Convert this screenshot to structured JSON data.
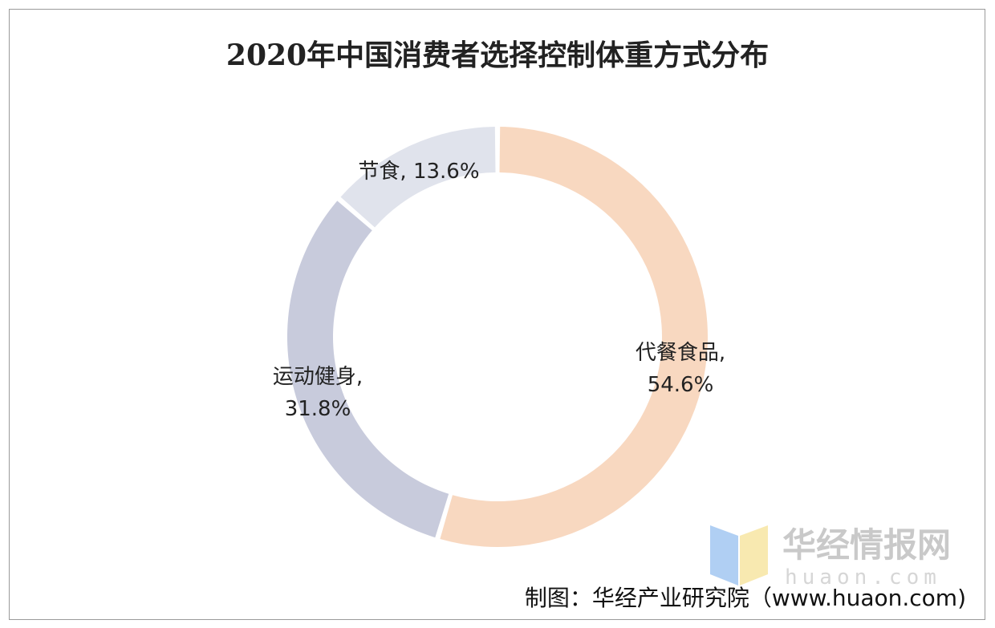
{
  "title": "2020年中国消费者选择控制体重方式分布",
  "source": "制图：华经产业研究院（www.huaon.com)",
  "watermark": {
    "name": "华经情报网",
    "url": "huaon.com"
  },
  "chart_data": {
    "type": "pie",
    "variant": "donut",
    "title": "2020年中国消费者选择控制体重方式分布",
    "unit": "%",
    "slices": [
      {
        "label": "代餐食品",
        "value": 54.6,
        "value_text": "54.6%",
        "color": "#f8d8c0"
      },
      {
        "label": "运动健身",
        "value": 31.8,
        "value_text": "31.8%",
        "color": "#c8cbdc"
      },
      {
        "label": "节食",
        "value": 13.6,
        "value_text": "13.6%",
        "color": "#e0e3ec"
      }
    ],
    "start_angle": "top",
    "direction": "clockwise",
    "legend": "none"
  }
}
